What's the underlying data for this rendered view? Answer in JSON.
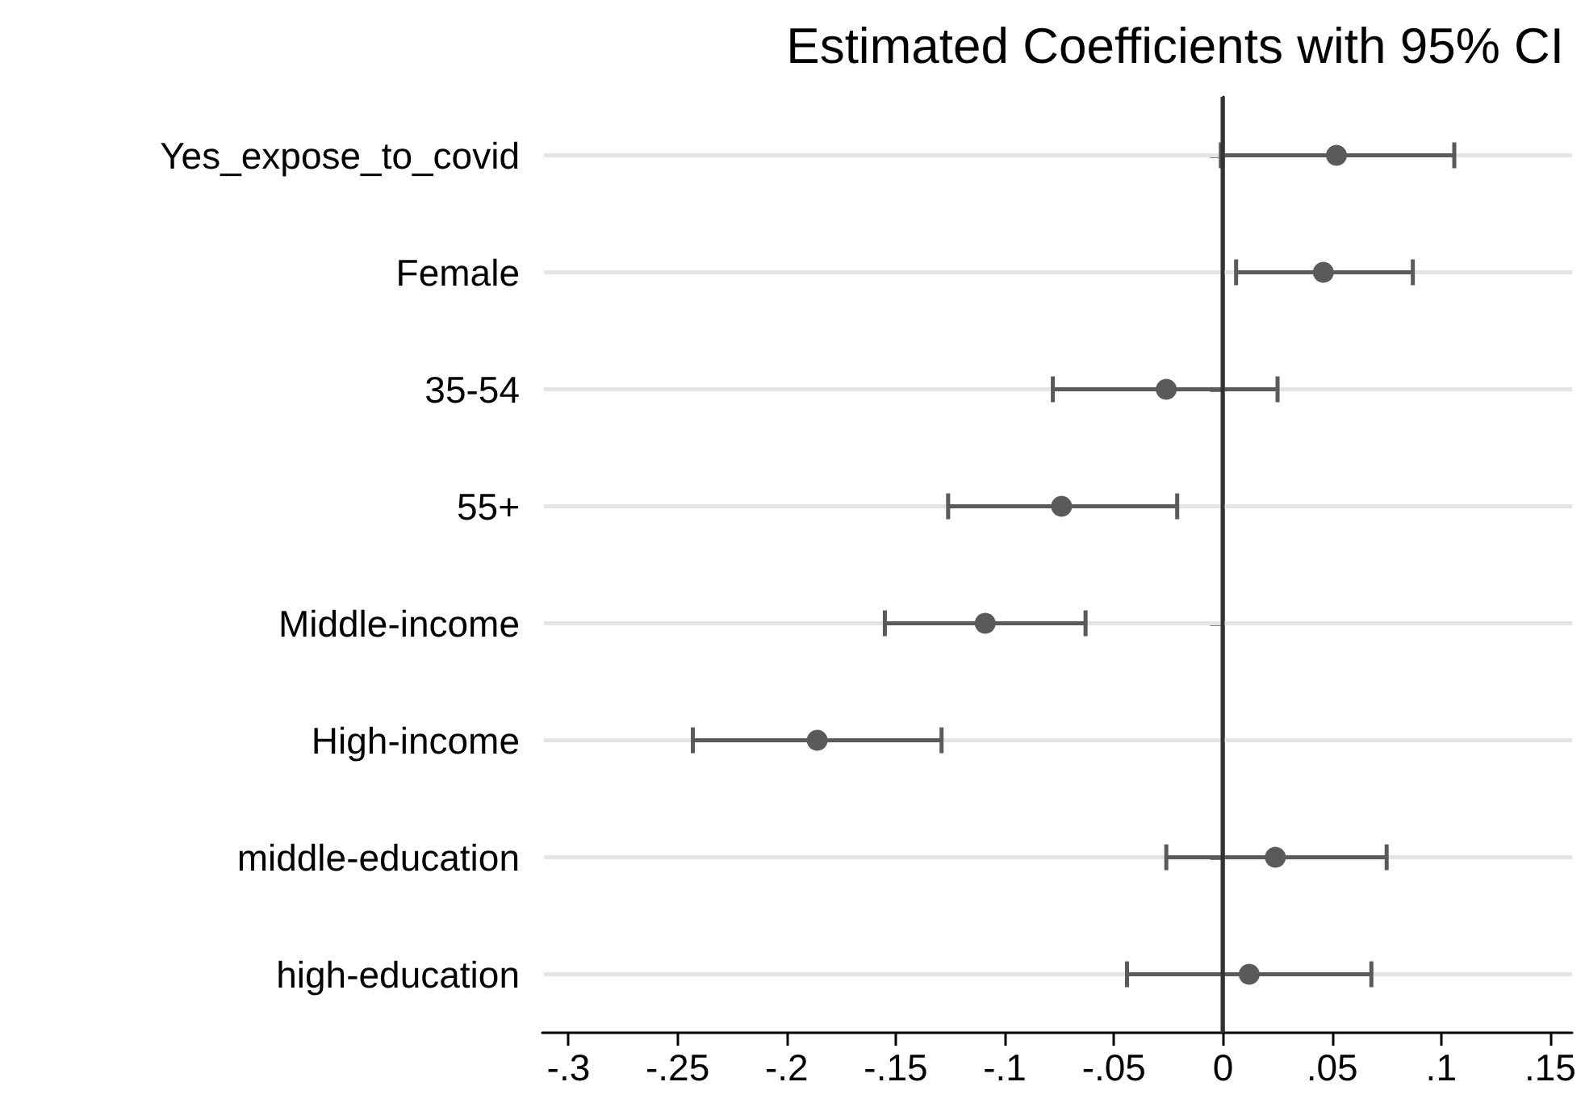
{
  "chart_data": {
    "type": "scatter",
    "title": "Estimated Coefficients with 95% CI",
    "orientation": "horizontal",
    "categories": [
      "Yes_expose_to_covid",
      "Female",
      "35-54",
      "55+",
      "Middle-income",
      "High-income",
      "middle-education",
      "high-education"
    ],
    "color": "#5a5a5a",
    "values": [
      0.052,
      0.046,
      -0.026,
      -0.074,
      -0.109,
      -0.186,
      0.024,
      0.012
    ],
    "errors": [
      [
        -0.001,
        0.106
      ],
      [
        0.006,
        0.087
      ],
      [
        -0.078,
        0.025
      ],
      [
        -0.126,
        -0.021
      ],
      [
        -0.155,
        -0.063
      ],
      [
        -0.243,
        -0.129
      ],
      [
        -0.026,
        0.075
      ],
      [
        -0.044,
        0.068
      ]
    ],
    "xlim": [
      -0.312,
      0.16
    ],
    "xticks": [
      {
        "value": -0.3,
        "label": "-.3"
      },
      {
        "value": -0.25,
        "label": "-.25"
      },
      {
        "value": -0.2,
        "label": "-.2"
      },
      {
        "value": -0.15,
        "label": "-.15"
      },
      {
        "value": -0.1,
        "label": "-.1"
      },
      {
        "value": -0.05,
        "label": "-.05"
      },
      {
        "value": 0,
        "label": "0"
      },
      {
        "value": 0.05,
        "label": ".05"
      },
      {
        "value": 0.1,
        "label": ".1"
      },
      {
        "value": 0.15,
        "label": ".15"
      }
    ],
    "ref_lines": [
      {
        "axis": "x",
        "value": 0,
        "color": "#333333",
        "line_style": "solid"
      }
    ],
    "grid": "y",
    "marker": "circle"
  }
}
